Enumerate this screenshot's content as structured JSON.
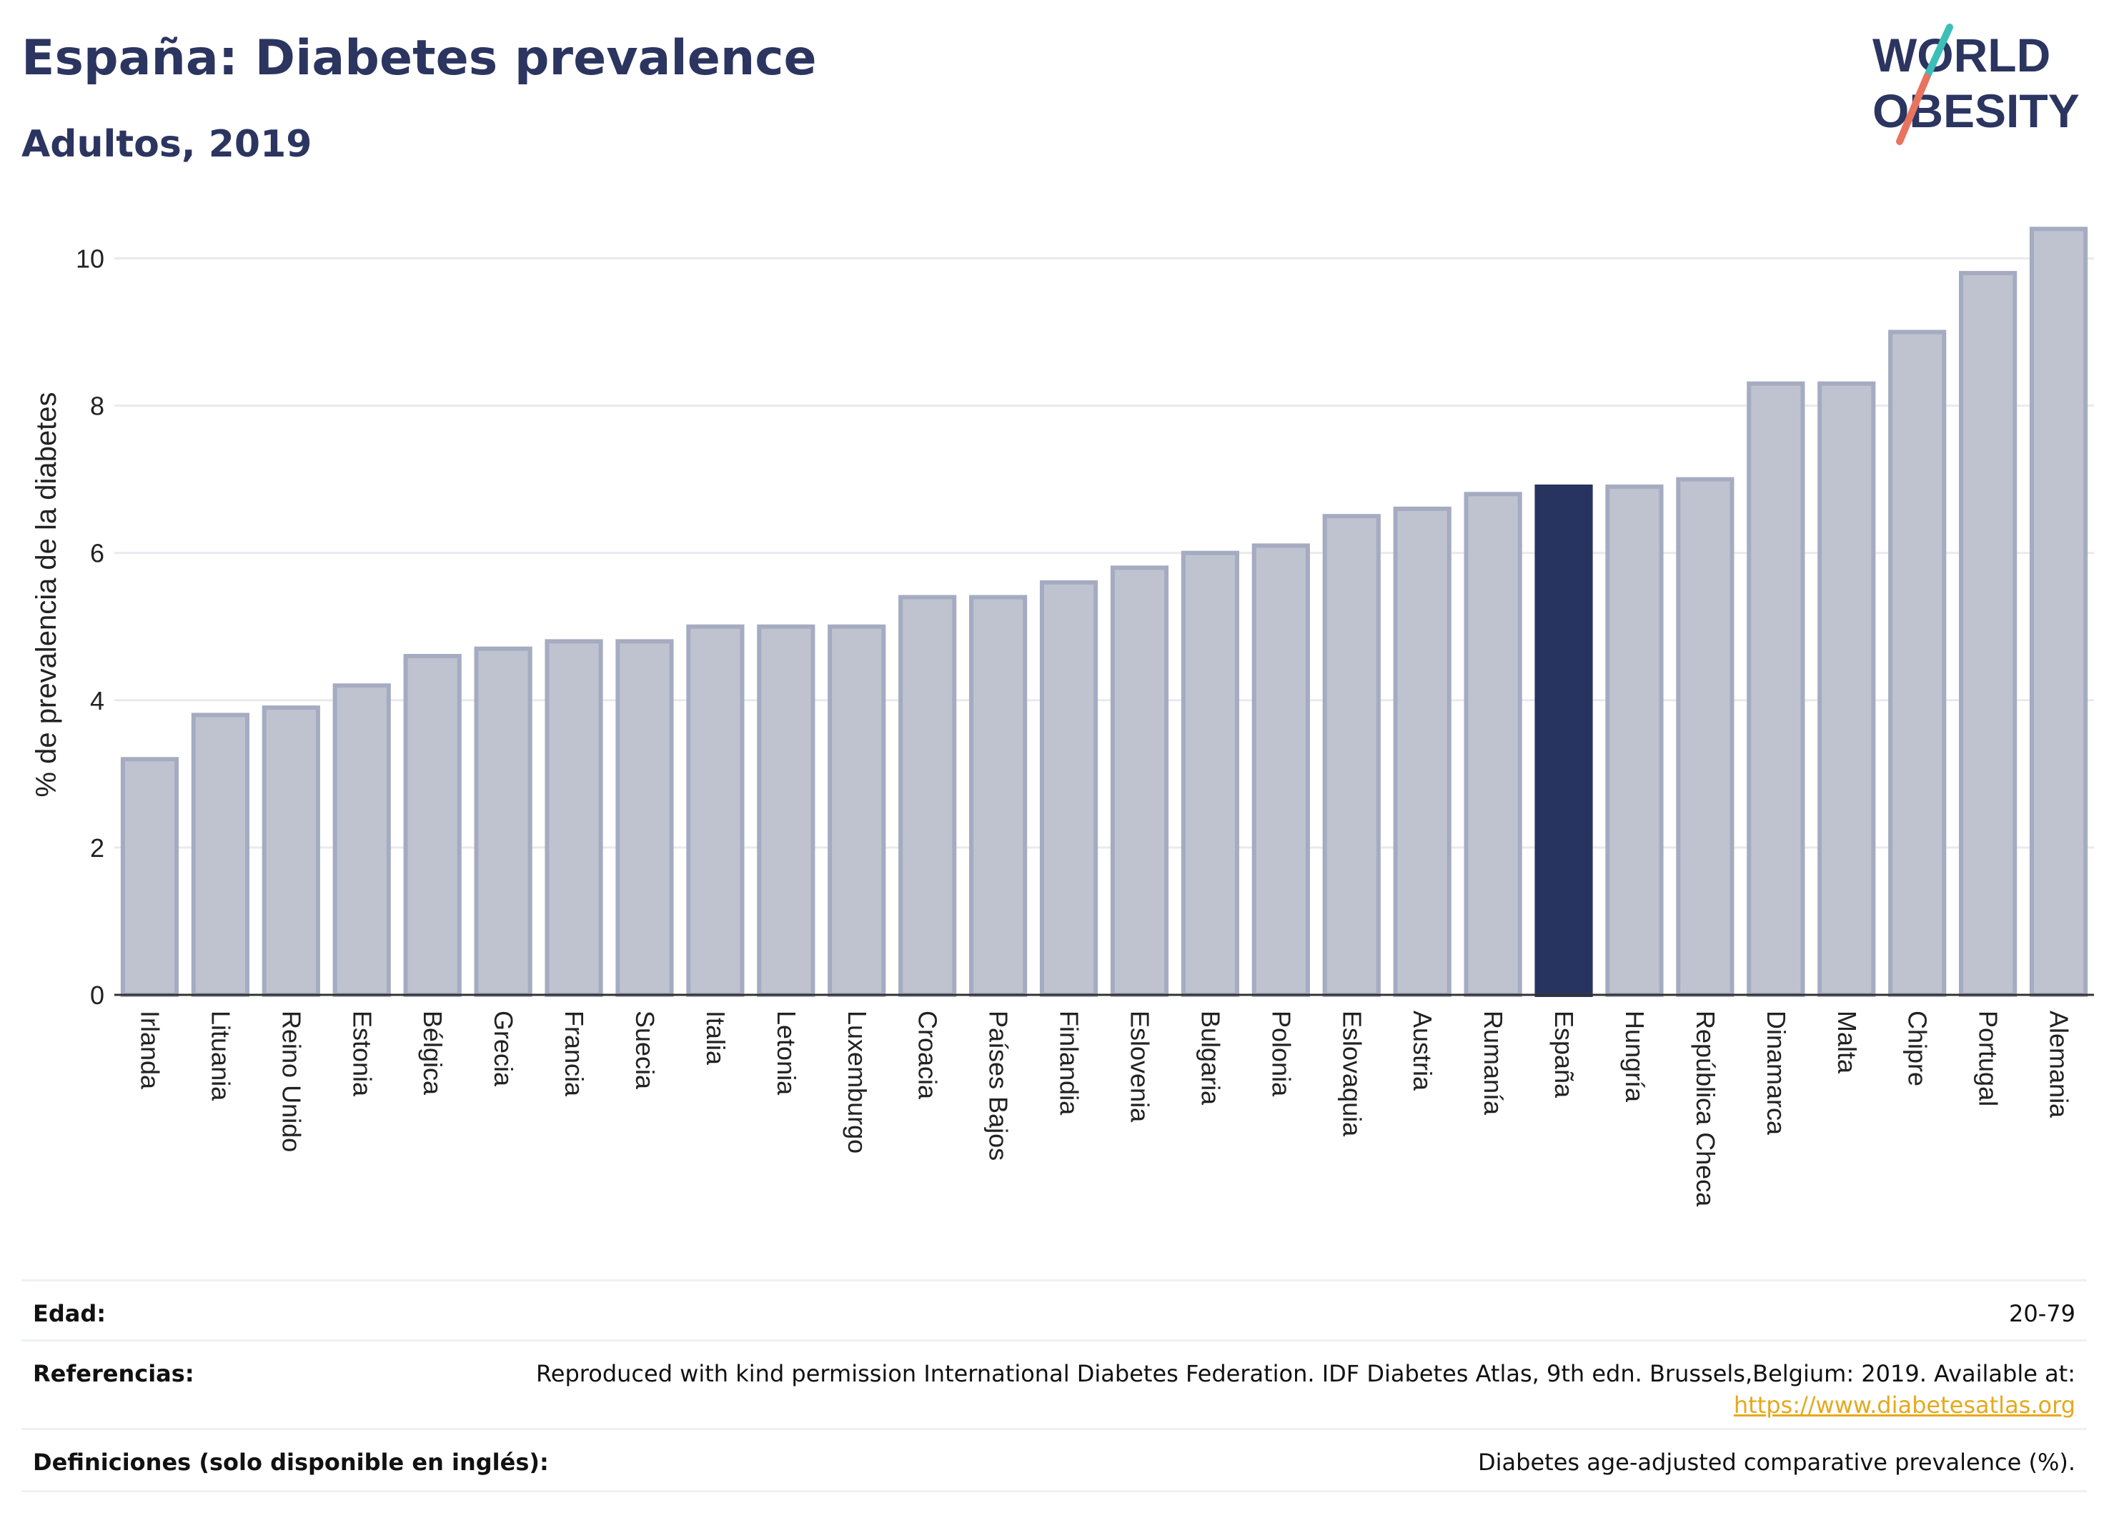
{
  "header": {
    "title": "España: Diabetes prevalence",
    "subtitle": "Adultos, 2019",
    "logo_line1": "WORLD",
    "logo_line2": "OBESITY"
  },
  "colors": {
    "title": "#2b3560",
    "bar_default": "#bfc3d0",
    "bar_default_border": "#a5abc0",
    "bar_highlight": "#283460",
    "grid": "#e9eaf0",
    "logo_slash_teal": "#3dbfb8",
    "logo_slash_coral": "#e8735e",
    "link": "#e5a91d"
  },
  "chart_data": {
    "type": "bar",
    "title": "España: Diabetes prevalence",
    "subtitle": "Adultos, 2019",
    "xlabel": "",
    "ylabel": "% de prevalencia de la diabetes",
    "ylim": [
      0,
      10.5
    ],
    "yticks": [
      0,
      2,
      4,
      6,
      8,
      10
    ],
    "grid": true,
    "highlight": "España",
    "categories": [
      "Irlanda",
      "Lituania",
      "Reino Unido",
      "Estonia",
      "Bélgica",
      "Grecia",
      "Francia",
      "Suecia",
      "Italia",
      "Letonia",
      "Luxemburgo",
      "Croacia",
      "Países Bajos",
      "Finlandia",
      "Eslovenia",
      "Bulgaria",
      "Polonia",
      "Eslovaquia",
      "Austria",
      "Rumanía",
      "España",
      "Hungría",
      "República Checa",
      "Dinamarca",
      "Malta",
      "Chipre",
      "Portugal",
      "Alemania"
    ],
    "values": [
      3.2,
      3.8,
      3.9,
      4.2,
      4.6,
      4.7,
      4.8,
      4.8,
      5.0,
      5.0,
      5.0,
      5.4,
      5.4,
      5.6,
      5.8,
      6.0,
      6.1,
      6.5,
      6.6,
      6.8,
      6.9,
      6.9,
      7.0,
      8.3,
      8.3,
      9.0,
      9.8,
      10.4
    ]
  },
  "footer": {
    "age_label": "Edad:",
    "age_value": "20-79",
    "refs_label": "Referencias:",
    "refs_text": "Reproduced with kind permission International Diabetes Federation. IDF Diabetes Atlas, 9th edn. Brussels,Belgium: 2019. Available at:",
    "refs_link": "https://www.diabetesatlas.org",
    "defs_label": "Definiciones (solo disponible en inglés):",
    "defs_value": "Diabetes age-adjusted comparative prevalence (%)."
  }
}
